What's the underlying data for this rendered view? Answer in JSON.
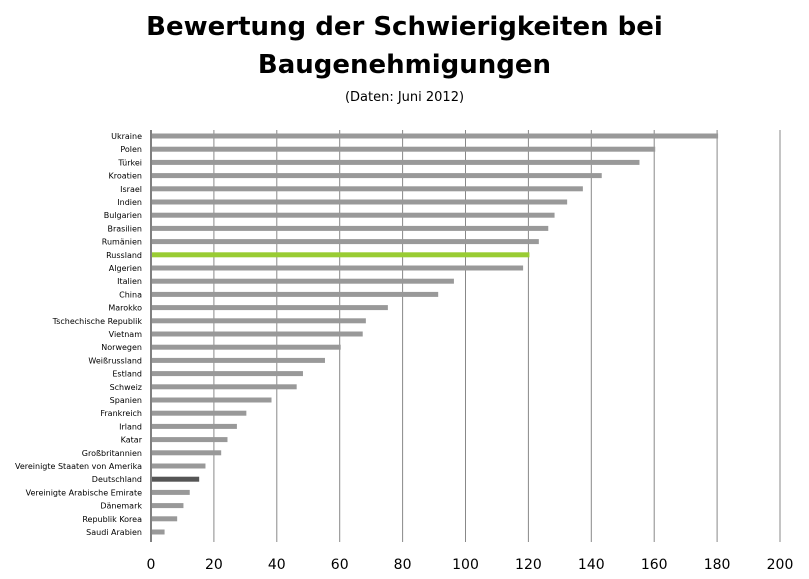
{
  "chart_data": {
    "type": "bar",
    "orientation": "horizontal",
    "title": "Bewertung der Schwierigkeiten bei Baugenehmigungen",
    "title_lines": [
      "Bewertung der Schwierigkeiten bei",
      "Baugenehmigungen"
    ],
    "subtitle": "(Daten: Juni 2012)",
    "xlabel": "",
    "ylabel": "",
    "xlim": [
      0,
      200
    ],
    "x_ticks": [
      0,
      20,
      40,
      60,
      80,
      100,
      120,
      140,
      160,
      180,
      200
    ],
    "grid": "vertical",
    "legend": "none",
    "categories": [
      "Ukraine",
      "Polen",
      "Türkei",
      "Kroatien",
      "Israel",
      "Indien",
      "Bulgarien",
      "Brasilien",
      "Rumänien",
      "Russland",
      "Algerien",
      "Italien",
      "China",
      "Marokko",
      "Tschechische  Republik",
      "Vietnam",
      "Norwegen",
      "Weißrussland",
      "Estland",
      "Schweiz",
      "Spanien",
      "Frankreich",
      "Irland",
      "Katar",
      "Großbritannien",
      "Vereinigte Staaten von Amerika",
      "Deutschland",
      "Vereinigte Arabische Emirate",
      "Dänemark",
      "Republik  Korea",
      "Saudi Arabien"
    ],
    "values": [
      180,
      160,
      155,
      143,
      137,
      132,
      128,
      126,
      123,
      120,
      118,
      96,
      91,
      75,
      68,
      67,
      60,
      55,
      48,
      46,
      38,
      30,
      27,
      24,
      22,
      17,
      15,
      12,
      10,
      8,
      4
    ],
    "highlight": {
      "Russland": "#99cc33",
      "Deutschland": "#555555"
    }
  },
  "colors": {
    "bar": "#999999",
    "bar_stroke": "#7f7f7f",
    "grid": "#888888",
    "axis": "#000000"
  }
}
